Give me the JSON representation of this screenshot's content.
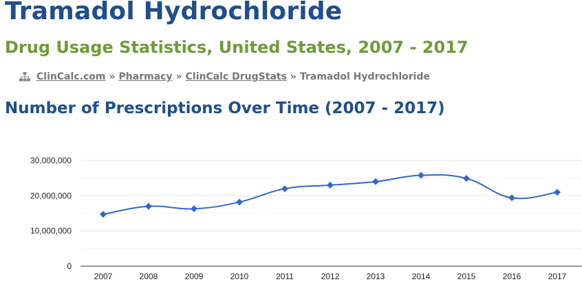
{
  "header": {
    "title": "Tramadol Hydrochloride",
    "subtitle": "Drug Usage Statistics, United States, 2007 - 2017"
  },
  "breadcrumb": {
    "icon": "sitemap-icon",
    "items": [
      {
        "label": "ClinCalc.com",
        "link": true
      },
      {
        "label": "Pharmacy",
        "link": true
      },
      {
        "label": "ClinCalc DrugStats",
        "link": true
      },
      {
        "label": "Tramadol Hydrochloride",
        "link": false
      }
    ],
    "separator": "»"
  },
  "section": {
    "title": "Number of Prescriptions Over Time (2007 - 2017)"
  },
  "colors": {
    "title": "#1f4e8c",
    "subtitle": "#6f9a3a",
    "series": "#3366cc",
    "grid": "#e6e6e6",
    "axis": "#333333"
  },
  "chart_data": {
    "type": "line",
    "x": [
      "2007",
      "2008",
      "2009",
      "2010",
      "2011",
      "2012",
      "2013",
      "2014",
      "2015",
      "2016",
      "2017"
    ],
    "series": [
      {
        "values": [
          14700000,
          17000000,
          16300000,
          18200000,
          22000000,
          23000000,
          24000000,
          25800000,
          24900000,
          19400000,
          21000000
        ]
      }
    ],
    "ylim": [
      0,
      30000000
    ],
    "yticks": [
      {
        "value": 0,
        "label": "0"
      },
      {
        "value": 10000000,
        "label": "10,000,000"
      },
      {
        "value": 20000000,
        "label": "20,000,000"
      },
      {
        "value": 30000000,
        "label": "30,000,000"
      }
    ],
    "grid": true,
    "minor_grid": true,
    "marker": "diamond",
    "curve": "smooth",
    "legend": "none"
  }
}
